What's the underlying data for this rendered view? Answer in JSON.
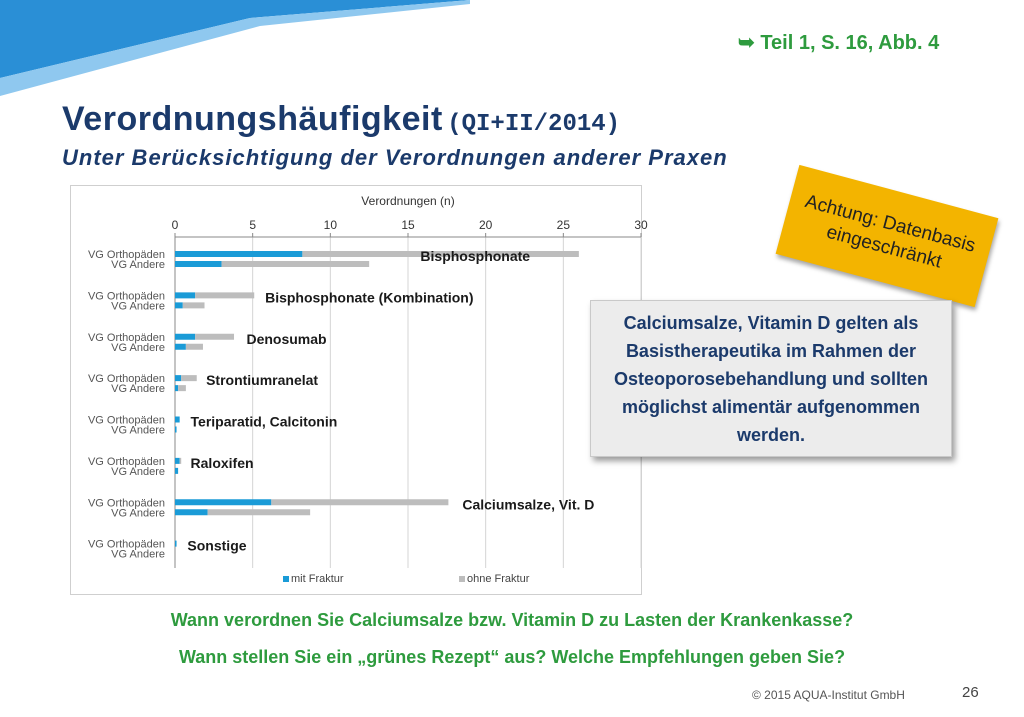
{
  "header": {
    "reference": "➥ Teil  1, S. 16, Abb. 4",
    "title": "Verordnungshäufigkeit",
    "title_period": "(QI+II/2014)",
    "subtitle": "Unter Berücksichtigung der Verordnungen anderer Praxen"
  },
  "callouts": {
    "warning_line1": "Achtung: Datenbasis",
    "warning_line2": "eingeschränkt",
    "info_text": "Calciumsalze, Vitamin D gelten als Basistherapeutika im Rahmen der Osteoporosebehandlung und sollten möglichst alimentär aufgenommen werden."
  },
  "questions": {
    "q1": "Wann verordnen Sie Calciumsalze bzw. Vitamin D zu Lasten der Krankenkasse?",
    "q2": "Wann stellen Sie ein „grünes Rezept“ aus? Welche Empfehlungen geben Sie?"
  },
  "footer": {
    "copyright": "© 2015 AQUA-Institut GmbH",
    "page_number": "26"
  },
  "colors": {
    "title": "#1b3a6b",
    "accent_green": "#2e9b3e",
    "mit_fraktur": "#1a9bd7",
    "ohne_fraktur": "#bdbdbd",
    "warning_bg": "#f3b400",
    "banner": "#2a8fd6"
  },
  "chart_data": {
    "type": "bar",
    "orientation": "horizontal",
    "stacked": true,
    "xlabel": "Verordnungen (n)",
    "xlim": [
      0,
      30
    ],
    "xticks": [
      0,
      5,
      10,
      15,
      20,
      25,
      30
    ],
    "axis_position": "top",
    "grid": true,
    "legend_position": "bottom",
    "row_labels": [
      "VG Orthopäden",
      "VG Andere"
    ],
    "series": [
      {
        "name": "mit Fraktur",
        "color": "#1a9bd7"
      },
      {
        "name": "ohne Fraktur",
        "color": "#bdbdbd"
      }
    ],
    "groups": [
      {
        "name": "Bisphosphonate",
        "orthopaeden": {
          "mit": 8.2,
          "ohne": 17.8
        },
        "andere": {
          "mit": 3.0,
          "ohne": 9.5
        }
      },
      {
        "name": "Bisphosphonate (Kombination)",
        "orthopaeden": {
          "mit": 1.3,
          "ohne": 3.8
        },
        "andere": {
          "mit": 0.5,
          "ohne": 1.4
        }
      },
      {
        "name": "Denosumab",
        "orthopaeden": {
          "mit": 1.3,
          "ohne": 2.5
        },
        "andere": {
          "mit": 0.7,
          "ohne": 1.1
        }
      },
      {
        "name": "Strontiumranelat",
        "orthopaeden": {
          "mit": 0.4,
          "ohne": 1.0
        },
        "andere": {
          "mit": 0.2,
          "ohne": 0.5
        }
      },
      {
        "name": "Teriparatid, Calcitonin",
        "orthopaeden": {
          "mit": 0.3,
          "ohne": 0.0
        },
        "andere": {
          "mit": 0.1,
          "ohne": 0.0
        }
      },
      {
        "name": "Raloxifen",
        "orthopaeden": {
          "mit": 0.3,
          "ohne": 0.1
        },
        "andere": {
          "mit": 0.2,
          "ohne": 0.0
        }
      },
      {
        "name": "Calciumsalze, Vit. D",
        "orthopaeden": {
          "mit": 6.2,
          "ohne": 11.4
        },
        "andere": {
          "mit": 2.1,
          "ohne": 6.6
        }
      },
      {
        "name": "Sonstige",
        "orthopaeden": {
          "mit": 0.1,
          "ohne": 0.0
        },
        "andere": {
          "mit": 0.0,
          "ohne": 0.0
        }
      }
    ]
  }
}
